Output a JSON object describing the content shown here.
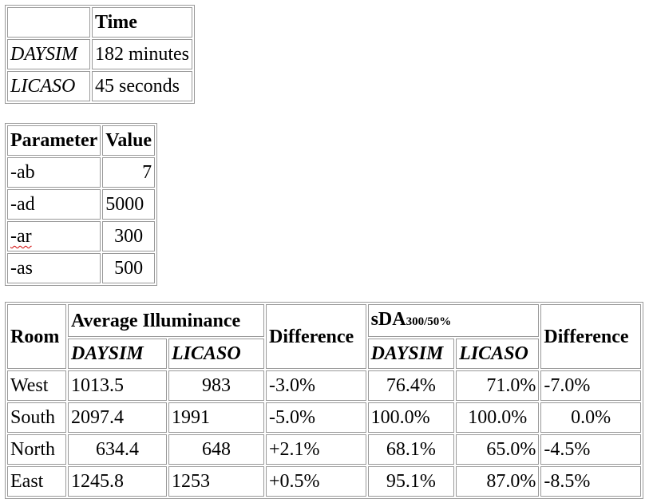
{
  "time_table": {
    "header": [
      "",
      "Time"
    ],
    "rows": [
      [
        "DAYSIM",
        "182 minutes"
      ],
      [
        "LICASO",
        "45 seconds"
      ]
    ]
  },
  "param_table": {
    "header": [
      "Parameter",
      "Value"
    ],
    "rows": [
      [
        "-ab",
        "7"
      ],
      [
        "-ad",
        "5000"
      ],
      [
        "-ar",
        "300"
      ],
      [
        "-as",
        "500"
      ]
    ]
  },
  "room_table": {
    "room_header": "Room",
    "avg_header": "Average Illuminance",
    "difference_header": "Difference",
    "sda_header": "sDA",
    "sda_subscript": "300/50%",
    "daysim_label": "DAYSIM",
    "licaso_label": "LICASO",
    "rows": [
      [
        "West",
        "1013.5",
        "983",
        "-3.0%",
        "76.4%",
        "71.0%",
        "-7.0%"
      ],
      [
        "South",
        "2097.4",
        "1991",
        "-5.0%",
        "100.0%",
        "100.0%",
        "0.0%"
      ],
      [
        "North",
        "634.4",
        "648",
        "+2.1%",
        "68.1%",
        "65.0%",
        "-4.5%"
      ],
      [
        "East",
        "1245.8",
        "1253",
        "+0.5%",
        "95.1%",
        "87.0%",
        "-8.5%"
      ]
    ]
  }
}
